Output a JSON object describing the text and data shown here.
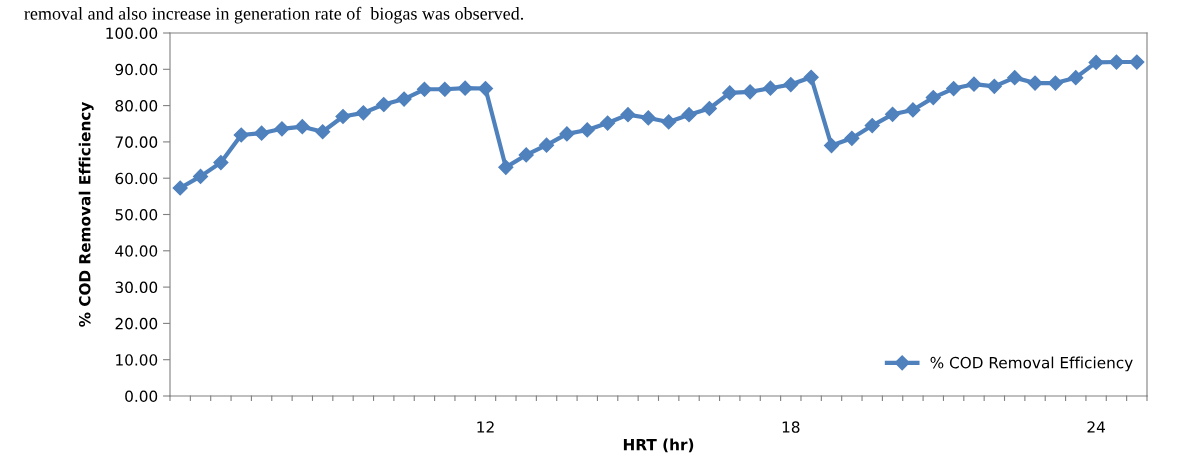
{
  "chart_data": {
    "type": "line",
    "xlabel": "HRT (hr)",
    "ylabel": "% COD Removal Efficiency",
    "annotations": [
      "removal and also increase in generation rate of  biogas was observed."
    ],
    "categories": [
      null,
      null,
      null,
      null,
      null,
      null,
      null,
      null,
      null,
      null,
      null,
      null,
      null,
      null,
      null,
      "12",
      null,
      null,
      null,
      null,
      null,
      null,
      null,
      null,
      null,
      null,
      null,
      null,
      null,
      null,
      "18",
      null,
      null,
      null,
      null,
      null,
      null,
      null,
      null,
      null,
      null,
      null,
      null,
      null,
      null,
      "24",
      null,
      null
    ],
    "series": [
      {
        "name": "% COD Removal Efficiency",
        "color": "#4f81bd",
        "values": [
          57.3,
          60.5,
          64.3,
          71.9,
          72.4,
          73.6,
          74.2,
          72.8,
          77.0,
          78.0,
          80.3,
          81.8,
          84.5,
          84.5,
          84.8,
          84.7,
          63.0,
          66.4,
          69.1,
          72.2,
          73.3,
          75.2,
          77.5,
          76.6,
          75.5,
          77.5,
          79.2,
          83.5,
          83.8,
          84.8,
          85.8,
          87.8,
          69.0,
          71.0,
          74.5,
          77.6,
          78.8,
          82.2,
          84.7,
          85.9,
          85.3,
          87.7,
          86.2,
          86.2,
          87.7,
          91.9,
          92.0,
          92.0
        ]
      }
    ],
    "ylim": [
      0,
      100
    ],
    "yticks": [
      {
        "value": 0,
        "label": "0.00"
      },
      {
        "value": 10,
        "label": "10.00"
      },
      {
        "value": 20,
        "label": "20.00"
      },
      {
        "value": 30,
        "label": "30.00"
      },
      {
        "value": 40,
        "label": "40.00"
      },
      {
        "value": 50,
        "label": "50.00"
      },
      {
        "value": 60,
        "label": "60.00"
      },
      {
        "value": 70,
        "label": "70.00"
      },
      {
        "value": 80,
        "label": "80.00"
      },
      {
        "value": 90,
        "label": "90.00"
      },
      {
        "value": 100,
        "label": "100.00"
      }
    ],
    "marker": "diamond",
    "line_style": "solid",
    "legend": "bottom right",
    "grid": false
  }
}
